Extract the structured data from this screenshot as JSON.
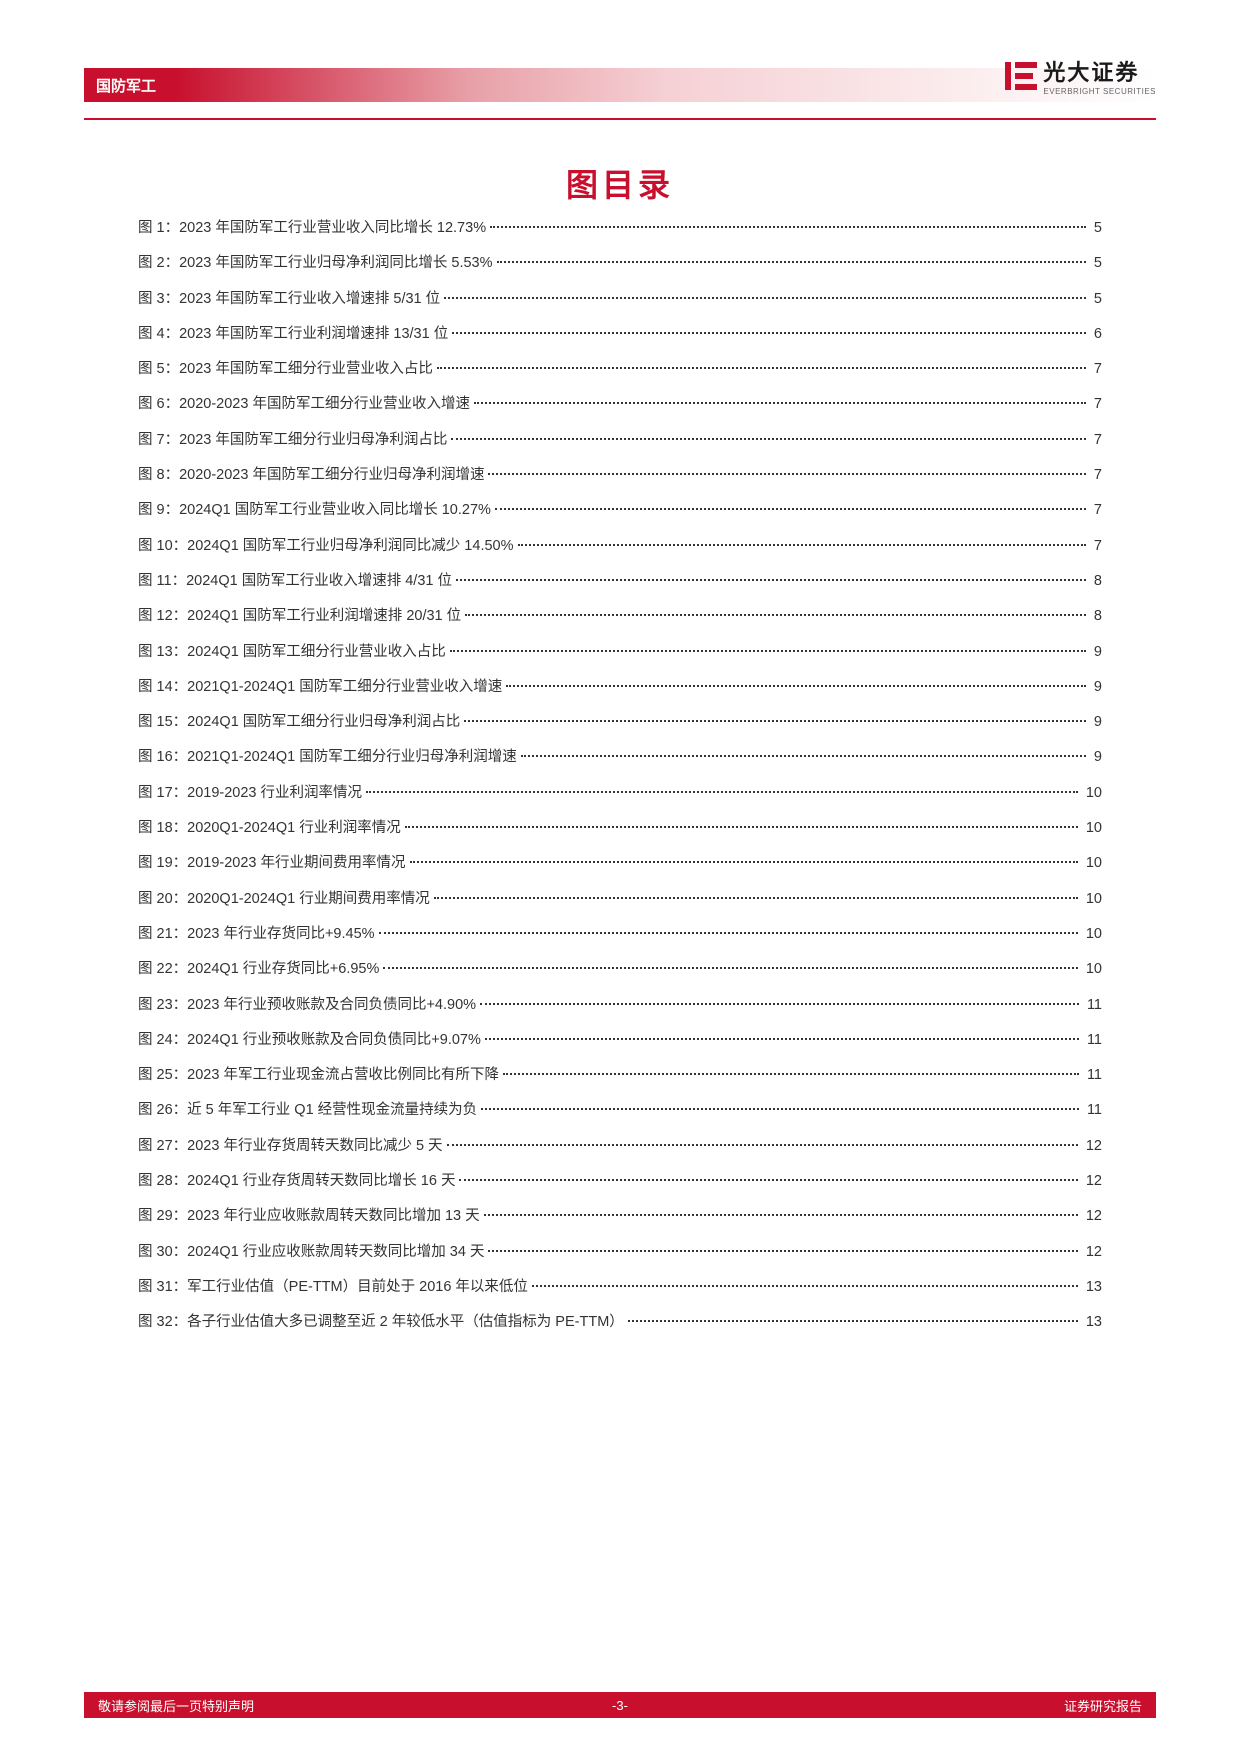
{
  "header": {
    "category": "国防军工",
    "logo_cn": "光大证券",
    "logo_en": "EVERBRIGHT SECURITIES"
  },
  "title": "图目录",
  "toc": [
    {
      "label": "图 1：2023 年国防军工行业营业收入同比增长 12.73%",
      "page": "5"
    },
    {
      "label": "图 2：2023 年国防军工行业归母净利润同比增长 5.53%",
      "page": "5"
    },
    {
      "label": "图 3：2023 年国防军工行业收入增速排 5/31 位",
      "page": "5"
    },
    {
      "label": "图 4：2023 年国防军工行业利润增速排 13/31 位",
      "page": "6"
    },
    {
      "label": "图 5：2023 年国防军工细分行业营业收入占比",
      "page": "7"
    },
    {
      "label": "图 6：2020-2023 年国防军工细分行业营业收入增速",
      "page": "7"
    },
    {
      "label": "图 7：2023 年国防军工细分行业归母净利润占比",
      "page": "7"
    },
    {
      "label": "图 8：2020-2023 年国防军工细分行业归母净利润增速",
      "page": "7"
    },
    {
      "label": "图 9：2024Q1 国防军工行业营业收入同比增长 10.27%",
      "page": "7"
    },
    {
      "label": "图 10：2024Q1 国防军工行业归母净利润同比减少 14.50%",
      "page": "7"
    },
    {
      "label": "图 11：2024Q1 国防军工行业收入增速排 4/31 位",
      "page": "8"
    },
    {
      "label": "图 12：2024Q1 国防军工行业利润增速排 20/31 位",
      "page": "8"
    },
    {
      "label": "图 13：2024Q1 国防军工细分行业营业收入占比",
      "page": "9"
    },
    {
      "label": "图 14：2021Q1-2024Q1 国防军工细分行业营业收入增速",
      "page": "9"
    },
    {
      "label": "图 15：2024Q1 国防军工细分行业归母净利润占比",
      "page": "9"
    },
    {
      "label": "图 16：2021Q1-2024Q1 国防军工细分行业归母净利润增速",
      "page": "9"
    },
    {
      "label": "图 17：2019-2023 行业利润率情况",
      "page": "10"
    },
    {
      "label": "图 18：2020Q1-2024Q1 行业利润率情况",
      "page": "10"
    },
    {
      "label": "图 19：2019-2023 年行业期间费用率情况",
      "page": "10"
    },
    {
      "label": "图 20：2020Q1-2024Q1 行业期间费用率情况",
      "page": "10"
    },
    {
      "label": "图 21：2023 年行业存货同比+9.45%",
      "page": "10"
    },
    {
      "label": "图 22：2024Q1 行业存货同比+6.95%",
      "page": "10"
    },
    {
      "label": "图 23：2023 年行业预收账款及合同负债同比+4.90%",
      "page": "11"
    },
    {
      "label": "图 24：2024Q1 行业预收账款及合同负债同比+9.07%",
      "page": "11"
    },
    {
      "label": "图 25：2023 年军工行业现金流占营收比例同比有所下降",
      "page": "11"
    },
    {
      "label": "图 26：近 5 年军工行业 Q1 经营性现金流量持续为负",
      "page": "11"
    },
    {
      "label": "图 27：2023 年行业存货周转天数同比减少 5 天",
      "page": "12"
    },
    {
      "label": "图 28：2024Q1 行业存货周转天数同比增长 16 天",
      "page": "12"
    },
    {
      "label": "图 29：2023 年行业应收账款周转天数同比增加 13 天",
      "page": "12"
    },
    {
      "label": "图 30：2024Q1 行业应收账款周转天数同比增加 34 天",
      "page": "12"
    },
    {
      "label": "图 31：军工行业估值（PE-TTM）目前处于 2016 年以来低位",
      "page": "13"
    },
    {
      "label": "图 32：各子行业估值大多已调整至近 2 年较低水平（估值指标为 PE-TTM）",
      "page": "13"
    }
  ],
  "footer": {
    "left": "敬请参阅最后一页特别声明",
    "center": "-3-",
    "right": "证券研究报告"
  },
  "colors": {
    "brand_red": "#c8102e",
    "text_dark": "#333333",
    "bg_white": "#ffffff"
  }
}
